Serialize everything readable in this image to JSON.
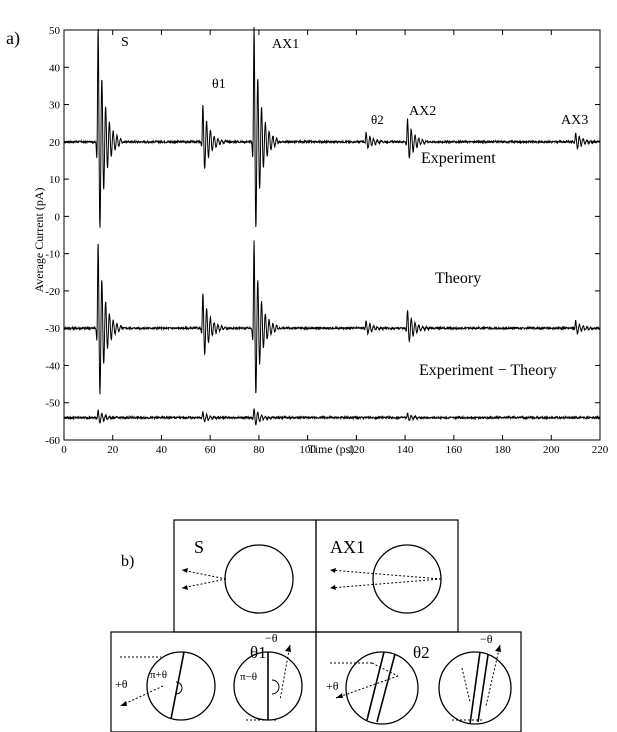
{
  "panel_a": {
    "label": "a)",
    "xlabel": "Time (ps)",
    "ylabel": "Average Current (pA)",
    "xticks": [
      "0",
      "20",
      "40",
      "60",
      "80",
      "100",
      "120",
      "140",
      "160",
      "180",
      "200",
      "220"
    ],
    "yticks": [
      "50",
      "40",
      "30",
      "20",
      "10",
      "0",
      "-10",
      "-20",
      "-30",
      "-40",
      "-50",
      "-60"
    ],
    "curve_labels": {
      "experiment": "Experiment",
      "theory": "Theory",
      "difference": "Experiment − Theory"
    },
    "peak_labels": {
      "S": "S",
      "theta1": "θ1",
      "AX1": "AX1",
      "theta2": "θ2",
      "AX2": "AX2",
      "AX3": "AX3"
    }
  },
  "chart_data": {
    "type": "line",
    "title": "",
    "xlabel": "Time (ps)",
    "ylabel": "Average Current (pA)",
    "xlim": [
      0,
      220
    ],
    "ylim": [
      -60,
      50
    ],
    "grid": false,
    "series": [
      {
        "name": "Experiment",
        "baseline": 20,
        "peaks": [
          {
            "label": "S",
            "t": 14,
            "max": 48,
            "min": -14
          },
          {
            "label": "θ1",
            "t": 57,
            "max": 32,
            "min": 12
          },
          {
            "label": "AX1",
            "t": 78,
            "max": 48,
            "min": -14
          },
          {
            "label": "θ2",
            "t": 124,
            "max": 23,
            "min": 18
          },
          {
            "label": "AX2",
            "t": 141,
            "max": 26,
            "min": 14
          },
          {
            "label": "AX3",
            "t": 210,
            "max": 23,
            "min": 18
          }
        ]
      },
      {
        "name": "Theory",
        "baseline": -30,
        "peaks": [
          {
            "t": 14,
            "max": -1,
            "min": -48
          },
          {
            "t": 57,
            "max": -18,
            "min": -37
          },
          {
            "t": 78,
            "max": -1,
            "min": -48
          },
          {
            "t": 124,
            "max": -28,
            "min": -32
          },
          {
            "t": 141,
            "max": -25,
            "min": -35
          },
          {
            "t": 210,
            "max": -28,
            "min": -32
          }
        ]
      },
      {
        "name": "Experiment − Theory",
        "baseline": -54,
        "peaks": [
          {
            "t": 14,
            "max": -52,
            "min": -56
          },
          {
            "t": 57,
            "max": -52.5,
            "min": -55.5
          },
          {
            "t": 78,
            "max": -51.5,
            "min": -56.5
          },
          {
            "t": 141,
            "max": -53,
            "min": -55
          }
        ]
      }
    ]
  },
  "panel_b": {
    "label": "b)",
    "top": [
      {
        "label": "S"
      },
      {
        "label": "AX1"
      }
    ],
    "bottom": [
      {
        "label": "θ1",
        "angles": [
          "+θ",
          "π+θ",
          "−θ",
          "π−θ"
        ]
      },
      {
        "label": "θ2",
        "angles": [
          "+θ",
          "−θ"
        ]
      }
    ]
  }
}
